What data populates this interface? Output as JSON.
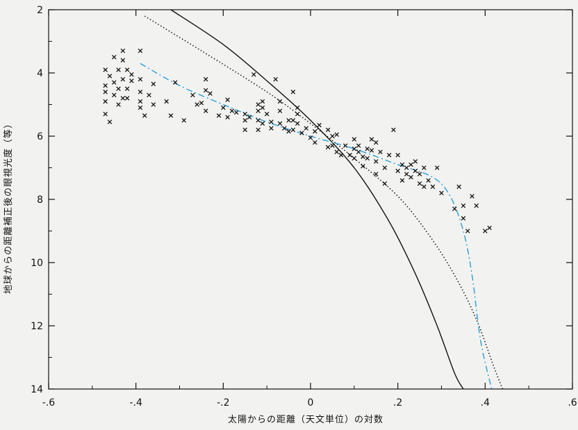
{
  "chart_data": {
    "type": "scatter",
    "title": "",
    "xlabel": "太陽からの距離（天文単位）の対数",
    "ylabel": "地球からの距離補正後の眼視光度（等）",
    "xlim": [
      -0.6,
      0.6
    ],
    "ylim": [
      14,
      2
    ],
    "y_inverted": true,
    "x_ticks": [
      -0.6,
      -0.4,
      -0.2,
      0,
      0.2,
      0.4,
      0.6
    ],
    "x_tick_labels": [
      "-.6",
      "-.4",
      "-.2",
      "0",
      ".2",
      ".4",
      ".6"
    ],
    "y_ticks": [
      2,
      4,
      6,
      8,
      10,
      12,
      14
    ],
    "y_tick_labels": [
      "2",
      "4",
      "6",
      "8",
      "10",
      "12",
      "14"
    ],
    "grid": false,
    "legend": "none",
    "colors": {
      "observations": "#111111",
      "solid_curve": "#111111",
      "dotted_curve": "#111111",
      "fit_curve": "#2a9fd6"
    },
    "series": [
      {
        "kind": "markers",
        "marker": "x",
        "points": [
          [
            -0.47,
            3.9
          ],
          [
            -0.47,
            4.4
          ],
          [
            -0.47,
            4.6
          ],
          [
            -0.47,
            4.9
          ],
          [
            -0.47,
            5.3
          ],
          [
            -0.46,
            5.55
          ],
          [
            -0.46,
            4.1
          ],
          [
            -0.45,
            3.5
          ],
          [
            -0.45,
            4.3
          ],
          [
            -0.45,
            4.7
          ],
          [
            -0.44,
            3.9
          ],
          [
            -0.44,
            4.5
          ],
          [
            -0.44,
            5.0
          ],
          [
            -0.43,
            3.3
          ],
          [
            -0.43,
            3.6
          ],
          [
            -0.43,
            4.2
          ],
          [
            -0.43,
            4.8
          ],
          [
            -0.42,
            3.9
          ],
          [
            -0.42,
            4.5
          ],
          [
            -0.42,
            4.8
          ],
          [
            -0.41,
            4.05
          ],
          [
            -0.41,
            4.25
          ],
          [
            -0.39,
            3.3
          ],
          [
            -0.39,
            4.2
          ],
          [
            -0.39,
            4.6
          ],
          [
            -0.39,
            4.9
          ],
          [
            -0.39,
            5.1
          ],
          [
            -0.38,
            5.35
          ],
          [
            -0.37,
            4.7
          ],
          [
            -0.36,
            5.0
          ],
          [
            -0.36,
            4.35
          ],
          [
            -0.33,
            4.9
          ],
          [
            -0.32,
            5.35
          ],
          [
            -0.31,
            4.3
          ],
          [
            -0.29,
            5.5
          ],
          [
            -0.27,
            4.7
          ],
          [
            -0.26,
            5.0
          ],
          [
            -0.25,
            4.95
          ],
          [
            -0.24,
            4.2
          ],
          [
            -0.24,
            4.55
          ],
          [
            -0.24,
            5.2
          ],
          [
            -0.23,
            4.65
          ],
          [
            -0.21,
            5.35
          ],
          [
            -0.2,
            5.1
          ],
          [
            -0.19,
            4.85
          ],
          [
            -0.19,
            5.4
          ],
          [
            -0.18,
            5.2
          ],
          [
            -0.17,
            5.25
          ],
          [
            -0.15,
            5.3
          ],
          [
            -0.15,
            5.5
          ],
          [
            -0.15,
            5.8
          ],
          [
            -0.14,
            5.4
          ],
          [
            -0.13,
            4.05
          ],
          [
            -0.12,
            5.0
          ],
          [
            -0.12,
            5.2
          ],
          [
            -0.12,
            5.5
          ],
          [
            -0.12,
            5.8
          ],
          [
            -0.11,
            4.9
          ],
          [
            -0.11,
            5.1
          ],
          [
            -0.11,
            5.6
          ],
          [
            -0.1,
            5.3
          ],
          [
            -0.09,
            5.55
          ],
          [
            -0.09,
            5.75
          ],
          [
            -0.08,
            4.2
          ],
          [
            -0.07,
            4.9
          ],
          [
            -0.07,
            5.2
          ],
          [
            -0.07,
            5.6
          ],
          [
            -0.06,
            5.75
          ],
          [
            -0.05,
            5.5
          ],
          [
            -0.05,
            5.85
          ],
          [
            -0.04,
            5.5
          ],
          [
            -0.04,
            5.8
          ],
          [
            -0.04,
            4.6
          ],
          [
            -0.03,
            5.3
          ],
          [
            -0.03,
            5.1
          ],
          [
            -0.03,
            5.6
          ],
          [
            -0.02,
            5.9
          ],
          [
            -0.01,
            5.75
          ],
          [
            0.0,
            6.05
          ],
          [
            0.01,
            5.85
          ],
          [
            0.01,
            6.2
          ],
          [
            0.02,
            5.65
          ],
          [
            0.04,
            5.8
          ],
          [
            0.04,
            6.35
          ],
          [
            0.05,
            6.0
          ],
          [
            0.05,
            6.3
          ],
          [
            0.06,
            6.5
          ],
          [
            0.06,
            5.95
          ],
          [
            0.07,
            6.6
          ],
          [
            0.08,
            6.3
          ],
          [
            0.09,
            6.6
          ],
          [
            0.1,
            6.1
          ],
          [
            0.1,
            6.4
          ],
          [
            0.1,
            6.7
          ],
          [
            0.11,
            6.3
          ],
          [
            0.11,
            6.5
          ],
          [
            0.12,
            6.65
          ],
          [
            0.12,
            6.95
          ],
          [
            0.13,
            6.4
          ],
          [
            0.13,
            6.7
          ],
          [
            0.14,
            6.1
          ],
          [
            0.14,
            6.45
          ],
          [
            0.15,
            6.8
          ],
          [
            0.15,
            7.2
          ],
          [
            0.15,
            6.2
          ],
          [
            0.16,
            6.5
          ],
          [
            0.17,
            7.0
          ],
          [
            0.17,
            7.5
          ],
          [
            0.18,
            6.6
          ],
          [
            0.19,
            5.8
          ],
          [
            0.2,
            6.6
          ],
          [
            0.2,
            7.1
          ],
          [
            0.21,
            6.9
          ],
          [
            0.21,
            7.4
          ],
          [
            0.22,
            7.0
          ],
          [
            0.22,
            7.2
          ],
          [
            0.23,
            6.9
          ],
          [
            0.23,
            7.3
          ],
          [
            0.24,
            7.1
          ],
          [
            0.24,
            6.8
          ],
          [
            0.25,
            7.2
          ],
          [
            0.25,
            7.5
          ],
          [
            0.26,
            7.0
          ],
          [
            0.26,
            7.6
          ],
          [
            0.27,
            7.4
          ],
          [
            0.28,
            7.6
          ],
          [
            0.29,
            7.0
          ],
          [
            0.3,
            7.8
          ],
          [
            0.33,
            8.3
          ],
          [
            0.34,
            7.6
          ],
          [
            0.35,
            8.6
          ],
          [
            0.35,
            8.2
          ],
          [
            0.36,
            9.0
          ],
          [
            0.37,
            7.9
          ],
          [
            0.38,
            8.2
          ],
          [
            0.4,
            9.0
          ],
          [
            0.41,
            8.9
          ]
        ]
      },
      {
        "kind": "line",
        "style": "solid",
        "points": [
          [
            -0.32,
            2.0
          ],
          [
            -0.2,
            3.1
          ],
          [
            -0.1,
            4.25
          ],
          [
            0.0,
            5.5
          ],
          [
            0.1,
            7.0
          ],
          [
            0.18,
            8.7
          ],
          [
            0.24,
            10.35
          ],
          [
            0.29,
            12.0
          ],
          [
            0.33,
            13.5
          ],
          [
            0.35,
            14.0
          ]
        ]
      },
      {
        "kind": "line",
        "style": "dotted",
        "points": [
          [
            -0.38,
            2.2
          ],
          [
            -0.25,
            3.3
          ],
          [
            -0.1,
            4.6
          ],
          [
            0.0,
            5.6
          ],
          [
            0.1,
            6.7
          ],
          [
            0.2,
            7.9
          ],
          [
            0.27,
            9.1
          ],
          [
            0.33,
            10.4
          ],
          [
            0.38,
            11.8
          ],
          [
            0.42,
            13.3
          ],
          [
            0.44,
            14.0
          ]
        ]
      },
      {
        "kind": "line",
        "style": "dash-dot",
        "color": "fit",
        "points": [
          [
            -0.39,
            3.7
          ],
          [
            -0.3,
            4.4
          ],
          [
            -0.2,
            5.0
          ],
          [
            -0.1,
            5.55
          ],
          [
            0.0,
            6.0
          ],
          [
            0.1,
            6.4
          ],
          [
            0.2,
            6.9
          ],
          [
            0.28,
            7.3
          ],
          [
            0.32,
            7.9
          ],
          [
            0.35,
            9.0
          ],
          [
            0.37,
            10.4
          ],
          [
            0.39,
            12.5
          ],
          [
            0.415,
            14.0
          ]
        ]
      }
    ]
  }
}
